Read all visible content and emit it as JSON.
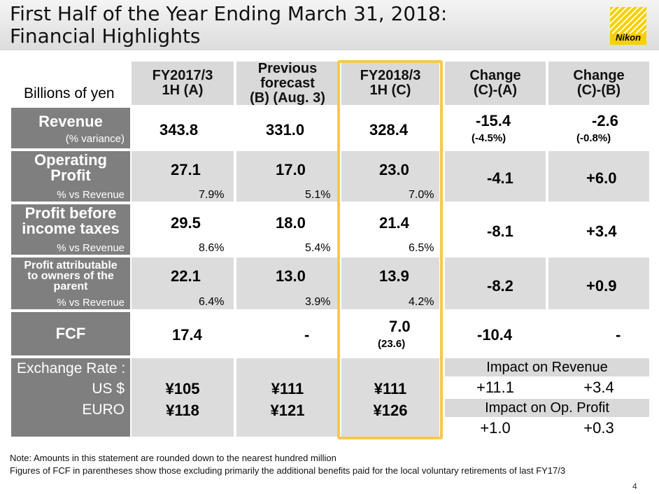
{
  "header": {
    "title_line1": "First Half of the Year Ending March 31, 2018:",
    "title_line2": "Financial Highlights",
    "logo_text": "Nikon",
    "brand_color": "#f7d000"
  },
  "table": {
    "units": "Billions of yen",
    "columns": [
      {
        "line1": "FY2017/3",
        "line2": "1H (A)"
      },
      {
        "line1": "Previous",
        "line2": "forecast",
        "line3": "(B) (Aug. 3)"
      },
      {
        "line1": "FY2018/3",
        "line2": "1H (C)"
      },
      {
        "line1": "Change",
        "line2": "(C)-(A)"
      },
      {
        "line1": "Change",
        "line2": "(C)-(B)"
      }
    ],
    "rows": {
      "revenue": {
        "label": "Revenue",
        "sublabel": "(% variance)",
        "a": "343.8",
        "b": "331.0",
        "c": "328.4",
        "ca": "-15.4",
        "ca_sub": "(-4.5%)",
        "cb": "-2.6",
        "cb_sub": "(-0.8%)"
      },
      "operating_profit": {
        "label_line1": "Operating",
        "label_line2": "Profit",
        "sublabel": "% vs Revenue",
        "a": "27.1",
        "a_pct": "7.9%",
        "b": "17.0",
        "b_pct": "5.1%",
        "c": "23.0",
        "c_pct": "7.0%",
        "ca": "-4.1",
        "cb": "+6.0"
      },
      "profit_before_tax": {
        "label_line1": "Profit before",
        "label_line2": "income taxes",
        "sublabel": "% vs Revenue",
        "a": "29.5",
        "a_pct": "8.6%",
        "b": "18.0",
        "b_pct": "5.4%",
        "c": "21.4",
        "c_pct": "6.5%",
        "ca": "-8.1",
        "cb": "+3.4"
      },
      "profit_attributable": {
        "label_line1": "Profit attributable",
        "label_line2": "to owners of the",
        "label_line3": "parent",
        "sublabel": "% vs Revenue",
        "a": "22.1",
        "a_pct": "6.4%",
        "b": "13.0",
        "b_pct": "3.9%",
        "c": "13.9",
        "c_pct": "4.2%",
        "ca": "-8.2",
        "cb": "+0.9"
      },
      "fcf": {
        "label": "FCF",
        "a": "17.4",
        "b": "-",
        "c": "7.0",
        "c_sub": "(23.6)",
        "ca": "-10.4",
        "cb": "-"
      }
    },
    "exchange": {
      "label": "Exchange Rate :",
      "usd_label": "US $",
      "euro_label": "EURO",
      "usd": {
        "a": "¥105",
        "b": "¥111",
        "c": "¥111"
      },
      "euro": {
        "a": "¥118",
        "b": "¥121",
        "c": "¥126"
      },
      "impact_revenue_label": "Impact on Revenue",
      "impact_revenue": {
        "ca": "+11.1",
        "cb": "+3.4"
      },
      "impact_op_label": "Impact on Op. Profit",
      "impact_op": {
        "ca": "+1.0",
        "cb": "+0.3"
      }
    },
    "highlight_color": "#f8c84a"
  },
  "notes": {
    "line1": "Note: Amounts in this statement are rounded down to the nearest hundred million",
    "line2": "Figures of FCF in parentheses show those excluding primarily the additional benefits paid for the local voluntary retirements of last FY17/3"
  },
  "page_number": "4"
}
